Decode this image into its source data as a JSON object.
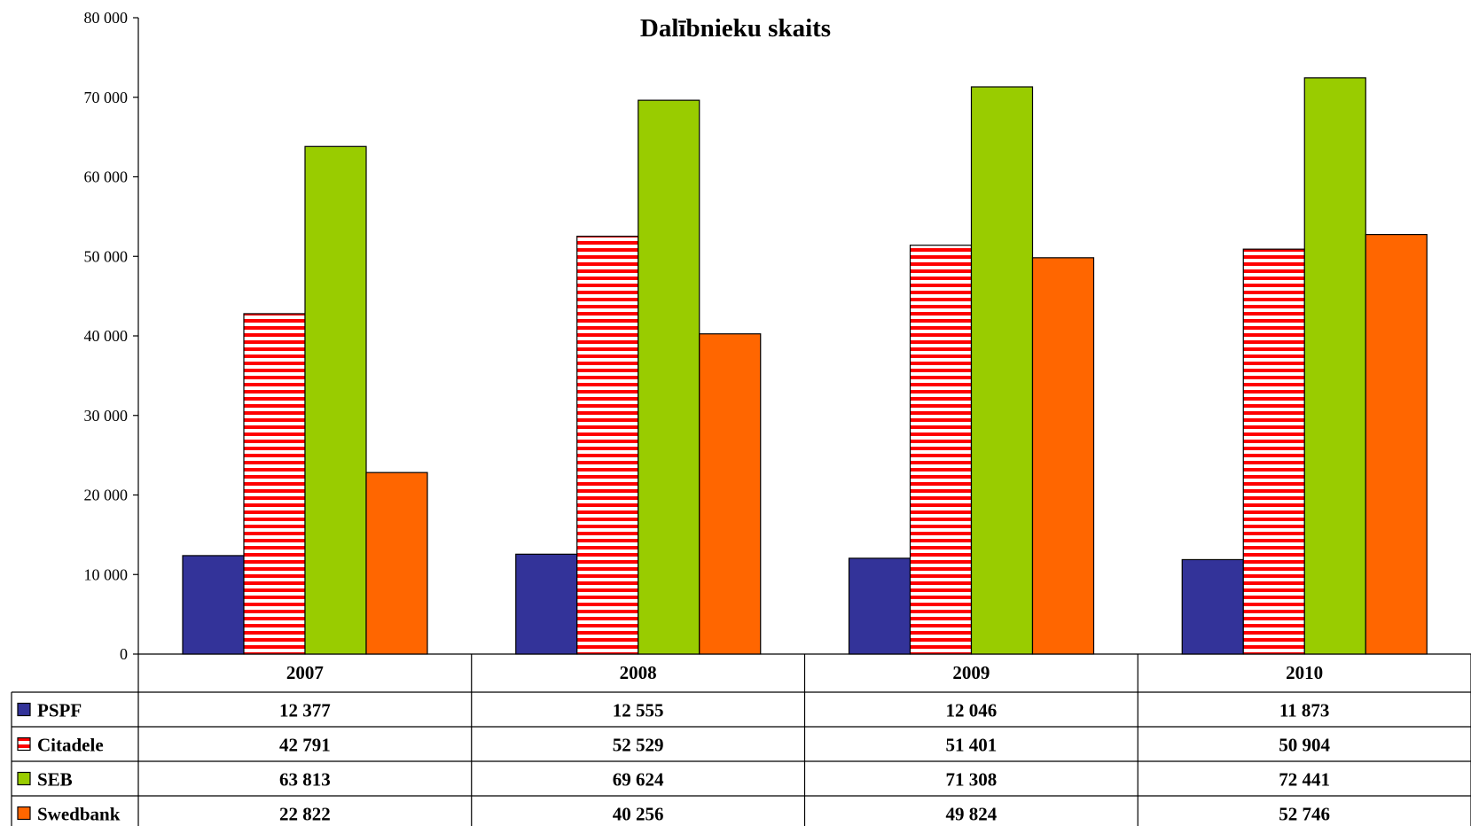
{
  "chart_data": {
    "type": "bar",
    "title": "Dalībnieku skaits",
    "xlabel": "",
    "ylabel": "",
    "ylim": [
      0,
      80000
    ],
    "y_ticks": [
      0,
      10000,
      20000,
      30000,
      40000,
      50000,
      60000,
      70000,
      80000
    ],
    "y_tick_labels": [
      "0",
      "10 000",
      "20 000",
      "30 000",
      "40 000",
      "50 000",
      "60 000",
      "70 000",
      "80 000"
    ],
    "grid": false,
    "legend": "data table below chart",
    "categories": [
      "2007",
      "2008",
      "2009",
      "2010"
    ],
    "series": [
      {
        "name": "PSPF",
        "values": [
          12377,
          12555,
          12046,
          11873
        ],
        "labels": [
          "12 377",
          "12 555",
          "12 046",
          "11 873"
        ],
        "color": "#333399",
        "pattern": "solid"
      },
      {
        "name": "Citadele",
        "values": [
          42791,
          52529,
          51401,
          50904
        ],
        "labels": [
          "42 791",
          "52 529",
          "51 401",
          "50 904"
        ],
        "color": "#ff0000",
        "pattern": "horizontal-stripes"
      },
      {
        "name": "SEB",
        "values": [
          63813,
          69624,
          71308,
          72441
        ],
        "labels": [
          "63 813",
          "69 624",
          "71 308",
          "72 441"
        ],
        "color": "#99cc00",
        "pattern": "solid"
      },
      {
        "name": "Swedbank",
        "values": [
          22822,
          40256,
          49824,
          52746
        ],
        "labels": [
          "22 822",
          "40 256",
          "49 824",
          "52 746"
        ],
        "color": "#ff6600",
        "pattern": "solid"
      }
    ]
  }
}
